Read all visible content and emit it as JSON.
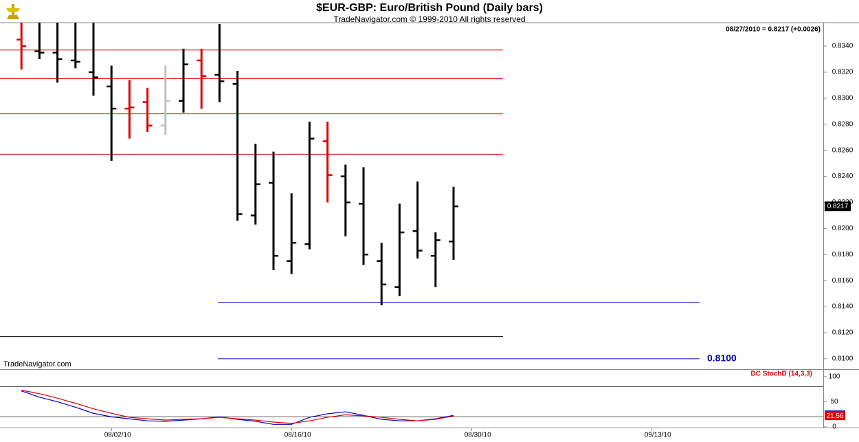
{
  "chart_data": [
    {
      "type": "ohlc",
      "title": "$EUR-GBP:  Euro/British Pound  (Daily bars)",
      "subtitle": "TradeNavigator.com © 1999-2010 All rights reserved",
      "quote": "08/27/2010 = 0.8217 (+0.0026)",
      "watermark": "TradeNavigator.com",
      "x": [
        "07/26/10",
        "07/27/10",
        "07/28/10",
        "07/29/10",
        "07/30/10",
        "08/02/10",
        "08/03/10",
        "08/04/10",
        "08/05/10",
        "08/06/10",
        "08/09/10",
        "08/10/10",
        "08/11/10",
        "08/12/10",
        "08/13/10",
        "08/16/10",
        "08/17/10",
        "08/18/10",
        "08/19/10",
        "08/20/10",
        "08/23/10",
        "08/24/10",
        "08/25/10",
        "08/26/10",
        "08/27/10"
      ],
      "open": [
        0.8345,
        0.8336,
        0.8335,
        0.8329,
        0.832,
        0.8309,
        0.8292,
        0.8297,
        0.8279,
        0.8298,
        0.8329,
        0.8318,
        0.8311,
        0.821,
        0.8235,
        0.8175,
        0.8188,
        0.8267,
        0.824,
        0.8219,
        0.8175,
        0.8155,
        0.8198,
        0.8179,
        0.819
      ],
      "high": [
        0.8365,
        0.8362,
        0.8362,
        0.8362,
        0.8362,
        0.8325,
        0.8314,
        0.8308,
        0.8325,
        0.8338,
        0.8338,
        0.8357,
        0.8321,
        0.8265,
        0.8259,
        0.8227,
        0.8282,
        0.8282,
        0.8249,
        0.8247,
        0.8189,
        0.8219,
        0.8236,
        0.8197,
        0.8232
      ],
      "low": [
        0.8322,
        0.833,
        0.8312,
        0.8323,
        0.8302,
        0.8252,
        0.8269,
        0.8274,
        0.8272,
        0.8289,
        0.8292,
        0.8297,
        0.8206,
        0.8203,
        0.8168,
        0.8165,
        0.8184,
        0.822,
        0.8194,
        0.8172,
        0.8141,
        0.8148,
        0.8177,
        0.8155,
        0.8176
      ],
      "close": [
        0.834,
        0.8335,
        0.833,
        0.8328,
        0.8316,
        0.8292,
        0.8293,
        0.8279,
        0.8298,
        0.8326,
        0.8317,
        0.8313,
        0.8211,
        0.8234,
        0.8179,
        0.8189,
        0.8269,
        0.8241,
        0.822,
        0.818,
        0.8157,
        0.8197,
        0.8183,
        0.8191,
        0.8217
      ],
      "colors": [
        "#e00000",
        "#000000",
        "#000000",
        "#000000",
        "#000000",
        "#000000",
        "#e00000",
        "#e00000",
        "#c0c0c0",
        "#000000",
        "#e00000",
        "#000000",
        "#000000",
        "#000000",
        "#000000",
        "#000000",
        "#000000",
        "#e00000",
        "#000000",
        "#000000",
        "#000000",
        "#000000",
        "#000000",
        "#000000",
        "#000000"
      ],
      "xlim": [
        "07/23/10",
        "09/24/10"
      ],
      "xticks": [
        "08/02/10",
        "08/16/10",
        "08/30/10",
        "09/13/10"
      ],
      "ylim": [
        0.8092,
        0.8358
      ],
      "yticks": [
        {
          "value": 0.81,
          "label": "0.8100"
        },
        {
          "value": 0.812,
          "label": "0.8120"
        },
        {
          "value": 0.814,
          "label": "0.8140"
        },
        {
          "value": 0.816,
          "label": "0.8160"
        },
        {
          "value": 0.818,
          "label": "0.8180"
        },
        {
          "value": 0.82,
          "label": "0.8200"
        },
        {
          "value": 0.822,
          "label": "0.8220"
        },
        {
          "value": 0.824,
          "label": "0.8240"
        },
        {
          "value": 0.826,
          "label": "0.8260"
        },
        {
          "value": 0.828,
          "label": "0.8280"
        },
        {
          "value": 0.83,
          "label": "0.8300"
        },
        {
          "value": 0.832,
          "label": "0.8320"
        },
        {
          "value": 0.834,
          "label": "0.8340"
        }
      ],
      "levels": [
        {
          "value": 0.8337,
          "color": "#e00000"
        },
        {
          "value": 0.8315,
          "color": "#e00000"
        },
        {
          "value": 0.8288,
          "color": "#e00000"
        },
        {
          "value": 0.8257,
          "color": "#e00000"
        },
        {
          "value": 0.8143,
          "color": "#0000cc"
        },
        {
          "value": 0.8117,
          "color": "#000000"
        },
        {
          "value": 0.81,
          "label": "0.8100",
          "color": "#0000cc"
        }
      ]
    },
    {
      "type": "line",
      "title": "DC StochD (14,3,3)",
      "x": [
        "07/26/10",
        "07/27/10",
        "07/28/10",
        "07/29/10",
        "07/30/10",
        "08/02/10",
        "08/03/10",
        "08/04/10",
        "08/05/10",
        "08/06/10",
        "08/09/10",
        "08/10/10",
        "08/11/10",
        "08/12/10",
        "08/13/10",
        "08/16/10",
        "08/17/10",
        "08/18/10",
        "08/19/10",
        "08/20/10",
        "08/23/10",
        "08/24/10",
        "08/25/10",
        "08/26/10",
        "08/27/10"
      ],
      "series": [
        {
          "color": "#0000cc",
          "values": [
            71.6,
            59,
            50,
            39,
            27,
            20,
            16,
            12,
            11,
            13.5,
            16,
            20,
            15,
            11,
            5,
            5,
            19,
            26,
            30,
            23,
            15,
            12,
            12,
            16,
            23
          ]
        },
        {
          "color": "#e00000",
          "values": [
            73,
            66,
            57,
            47,
            36,
            27,
            19,
            16,
            13.5,
            15,
            16,
            19,
            16,
            13.5,
            9.5,
            7,
            12,
            19,
            24,
            22,
            19,
            15,
            12,
            15,
            21.56
          ]
        }
      ],
      "xlim": [
        "07/23/10",
        "09/24/10"
      ],
      "xticks": [
        "08/02/10",
        "08/16/10",
        "08/30/10",
        "09/13/10"
      ],
      "ylim": [
        -1.4,
        113.5
      ],
      "yticks": [
        0,
        50,
        100
      ],
      "hlines": [
        20,
        80
      ]
    }
  ]
}
